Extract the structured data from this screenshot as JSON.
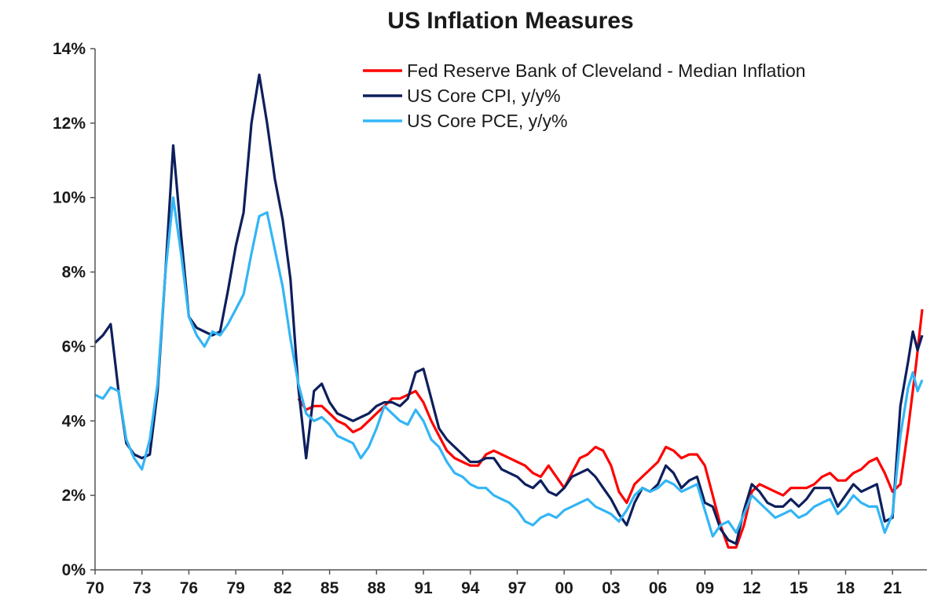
{
  "chart_data": {
    "type": "line",
    "title": "US Inflation Measures",
    "xlabel": "",
    "ylabel": "",
    "xlim": [
      1970.0,
      2023.2
    ],
    "ylim": [
      0,
      14
    ],
    "grid": false,
    "legend_position": "top-right",
    "x_tick_values": [
      1970,
      1973,
      1976,
      1979,
      1982,
      1985,
      1988,
      1991,
      1994,
      1997,
      2000,
      2003,
      2006,
      2009,
      2012,
      2015,
      2018,
      2021
    ],
    "x_tick_labels": [
      "70",
      "73",
      "76",
      "79",
      "82",
      "85",
      "88",
      "91",
      "94",
      "97",
      "00",
      "03",
      "06",
      "09",
      "12",
      "15",
      "18",
      "21"
    ],
    "y_tick_values": [
      0,
      2,
      4,
      6,
      8,
      10,
      12,
      14
    ],
    "y_tick_labels": [
      "0%",
      "2%",
      "4%",
      "6%",
      "8%",
      "10%",
      "12%",
      "14%"
    ],
    "series": [
      {
        "name": "Fed Reserve Bank of Cleveland - Median Inflation",
        "color": "#ff0000",
        "points": [
          [
            1983.0,
            4.6
          ],
          [
            1983.5,
            4.3
          ],
          [
            1984.0,
            4.4
          ],
          [
            1984.5,
            4.4
          ],
          [
            1985.0,
            4.2
          ],
          [
            1985.5,
            4.0
          ],
          [
            1986.0,
            3.9
          ],
          [
            1986.5,
            3.7
          ],
          [
            1987.0,
            3.8
          ],
          [
            1987.5,
            4.0
          ],
          [
            1988.0,
            4.2
          ],
          [
            1988.5,
            4.4
          ],
          [
            1989.0,
            4.6
          ],
          [
            1989.5,
            4.6
          ],
          [
            1990.0,
            4.7
          ],
          [
            1990.5,
            4.8
          ],
          [
            1991.0,
            4.5
          ],
          [
            1991.5,
            4.0
          ],
          [
            1992.0,
            3.6
          ],
          [
            1992.5,
            3.2
          ],
          [
            1993.0,
            3.0
          ],
          [
            1993.5,
            2.9
          ],
          [
            1994.0,
            2.8
          ],
          [
            1994.5,
            2.8
          ],
          [
            1995.0,
            3.1
          ],
          [
            1995.5,
            3.2
          ],
          [
            1996.0,
            3.1
          ],
          [
            1996.5,
            3.0
          ],
          [
            1997.0,
            2.9
          ],
          [
            1997.5,
            2.8
          ],
          [
            1998.0,
            2.6
          ],
          [
            1998.5,
            2.5
          ],
          [
            1999.0,
            2.8
          ],
          [
            1999.5,
            2.5
          ],
          [
            2000.0,
            2.2
          ],
          [
            2000.5,
            2.6
          ],
          [
            2001.0,
            3.0
          ],
          [
            2001.5,
            3.1
          ],
          [
            2002.0,
            3.3
          ],
          [
            2002.5,
            3.2
          ],
          [
            2003.0,
            2.8
          ],
          [
            2003.5,
            2.1
          ],
          [
            2004.0,
            1.8
          ],
          [
            2004.5,
            2.3
          ],
          [
            2005.0,
            2.5
          ],
          [
            2005.5,
            2.7
          ],
          [
            2006.0,
            2.9
          ],
          [
            2006.5,
            3.3
          ],
          [
            2007.0,
            3.2
          ],
          [
            2007.5,
            3.0
          ],
          [
            2008.0,
            3.1
          ],
          [
            2008.5,
            3.1
          ],
          [
            2009.0,
            2.8
          ],
          [
            2009.5,
            2.0
          ],
          [
            2010.0,
            1.2
          ],
          [
            2010.5,
            0.6
          ],
          [
            2011.0,
            0.6
          ],
          [
            2011.5,
            1.2
          ],
          [
            2012.0,
            2.1
          ],
          [
            2012.5,
            2.3
          ],
          [
            2013.0,
            2.2
          ],
          [
            2013.5,
            2.1
          ],
          [
            2014.0,
            2.0
          ],
          [
            2014.5,
            2.2
          ],
          [
            2015.0,
            2.2
          ],
          [
            2015.5,
            2.2
          ],
          [
            2016.0,
            2.3
          ],
          [
            2016.5,
            2.5
          ],
          [
            2017.0,
            2.6
          ],
          [
            2017.5,
            2.4
          ],
          [
            2018.0,
            2.4
          ],
          [
            2018.5,
            2.6
          ],
          [
            2019.0,
            2.7
          ],
          [
            2019.5,
            2.9
          ],
          [
            2020.0,
            3.0
          ],
          [
            2020.5,
            2.6
          ],
          [
            2021.0,
            2.1
          ],
          [
            2021.5,
            2.3
          ],
          [
            2022.0,
            3.8
          ],
          [
            2022.5,
            5.5
          ],
          [
            2022.9,
            7.0
          ]
        ]
      },
      {
        "name": "US Core CPI, y/y%",
        "color": "#0d1f5c",
        "points": [
          [
            1970.0,
            6.1
          ],
          [
            1970.5,
            6.3
          ],
          [
            1971.0,
            6.6
          ],
          [
            1971.5,
            4.8
          ],
          [
            1972.0,
            3.4
          ],
          [
            1972.5,
            3.1
          ],
          [
            1973.0,
            3.0
          ],
          [
            1973.5,
            3.1
          ],
          [
            1974.0,
            4.8
          ],
          [
            1974.5,
            8.0
          ],
          [
            1975.0,
            11.4
          ],
          [
            1975.5,
            9.0
          ],
          [
            1976.0,
            6.8
          ],
          [
            1976.5,
            6.5
          ],
          [
            1977.0,
            6.4
          ],
          [
            1977.5,
            6.3
          ],
          [
            1978.0,
            6.4
          ],
          [
            1978.5,
            7.5
          ],
          [
            1979.0,
            8.7
          ],
          [
            1979.5,
            9.6
          ],
          [
            1980.0,
            12.0
          ],
          [
            1980.5,
            13.3
          ],
          [
            1981.0,
            12.0
          ],
          [
            1981.5,
            10.5
          ],
          [
            1982.0,
            9.4
          ],
          [
            1982.5,
            7.8
          ],
          [
            1983.0,
            4.9
          ],
          [
            1983.5,
            3.0
          ],
          [
            1984.0,
            4.8
          ],
          [
            1984.5,
            5.0
          ],
          [
            1985.0,
            4.5
          ],
          [
            1985.5,
            4.2
          ],
          [
            1986.0,
            4.1
          ],
          [
            1986.5,
            4.0
          ],
          [
            1987.0,
            4.1
          ],
          [
            1987.5,
            4.2
          ],
          [
            1988.0,
            4.4
          ],
          [
            1988.5,
            4.5
          ],
          [
            1989.0,
            4.5
          ],
          [
            1989.5,
            4.4
          ],
          [
            1990.0,
            4.6
          ],
          [
            1990.5,
            5.3
          ],
          [
            1991.0,
            5.4
          ],
          [
            1991.5,
            4.6
          ],
          [
            1992.0,
            3.8
          ],
          [
            1992.5,
            3.5
          ],
          [
            1993.0,
            3.3
          ],
          [
            1993.5,
            3.1
          ],
          [
            1994.0,
            2.9
          ],
          [
            1994.5,
            2.9
          ],
          [
            1995.0,
            3.0
          ],
          [
            1995.5,
            3.0
          ],
          [
            1996.0,
            2.7
          ],
          [
            1996.5,
            2.6
          ],
          [
            1997.0,
            2.5
          ],
          [
            1997.5,
            2.3
          ],
          [
            1998.0,
            2.2
          ],
          [
            1998.5,
            2.4
          ],
          [
            1999.0,
            2.1
          ],
          [
            1999.5,
            2.0
          ],
          [
            2000.0,
            2.2
          ],
          [
            2000.5,
            2.5
          ],
          [
            2001.0,
            2.6
          ],
          [
            2001.5,
            2.7
          ],
          [
            2002.0,
            2.5
          ],
          [
            2002.5,
            2.2
          ],
          [
            2003.0,
            1.9
          ],
          [
            2003.5,
            1.5
          ],
          [
            2004.0,
            1.2
          ],
          [
            2004.5,
            1.8
          ],
          [
            2005.0,
            2.2
          ],
          [
            2005.5,
            2.1
          ],
          [
            2006.0,
            2.3
          ],
          [
            2006.5,
            2.8
          ],
          [
            2007.0,
            2.6
          ],
          [
            2007.5,
            2.2
          ],
          [
            2008.0,
            2.4
          ],
          [
            2008.5,
            2.5
          ],
          [
            2009.0,
            1.8
          ],
          [
            2009.5,
            1.7
          ],
          [
            2010.0,
            1.1
          ],
          [
            2010.5,
            0.8
          ],
          [
            2011.0,
            0.7
          ],
          [
            2011.5,
            1.6
          ],
          [
            2012.0,
            2.3
          ],
          [
            2012.5,
            2.1
          ],
          [
            2013.0,
            1.8
          ],
          [
            2013.5,
            1.7
          ],
          [
            2014.0,
            1.7
          ],
          [
            2014.5,
            1.9
          ],
          [
            2015.0,
            1.7
          ],
          [
            2015.5,
            1.9
          ],
          [
            2016.0,
            2.2
          ],
          [
            2016.5,
            2.2
          ],
          [
            2017.0,
            2.2
          ],
          [
            2017.5,
            1.7
          ],
          [
            2018.0,
            2.0
          ],
          [
            2018.5,
            2.3
          ],
          [
            2019.0,
            2.1
          ],
          [
            2019.5,
            2.2
          ],
          [
            2020.0,
            2.3
          ],
          [
            2020.5,
            1.3
          ],
          [
            2021.0,
            1.4
          ],
          [
            2021.5,
            4.4
          ],
          [
            2022.0,
            5.6
          ],
          [
            2022.3,
            6.4
          ],
          [
            2022.6,
            5.9
          ],
          [
            2022.9,
            6.3
          ]
        ]
      },
      {
        "name": "US Core PCE, y/y%",
        "color": "#33b5f5",
        "points": [
          [
            1970.0,
            4.7
          ],
          [
            1970.5,
            4.6
          ],
          [
            1971.0,
            4.9
          ],
          [
            1971.5,
            4.8
          ],
          [
            1972.0,
            3.5
          ],
          [
            1972.5,
            3.0
          ],
          [
            1973.0,
            2.7
          ],
          [
            1973.5,
            3.5
          ],
          [
            1974.0,
            5.0
          ],
          [
            1974.5,
            8.0
          ],
          [
            1975.0,
            10.0
          ],
          [
            1975.5,
            8.5
          ],
          [
            1976.0,
            6.8
          ],
          [
            1976.5,
            6.3
          ],
          [
            1977.0,
            6.0
          ],
          [
            1977.5,
            6.4
          ],
          [
            1978.0,
            6.3
          ],
          [
            1978.5,
            6.6
          ],
          [
            1979.0,
            7.0
          ],
          [
            1979.5,
            7.4
          ],
          [
            1980.0,
            8.5
          ],
          [
            1980.5,
            9.5
          ],
          [
            1981.0,
            9.6
          ],
          [
            1981.5,
            8.6
          ],
          [
            1982.0,
            7.6
          ],
          [
            1982.5,
            6.2
          ],
          [
            1983.0,
            5.0
          ],
          [
            1983.5,
            4.2
          ],
          [
            1984.0,
            4.0
          ],
          [
            1984.5,
            4.1
          ],
          [
            1985.0,
            3.9
          ],
          [
            1985.5,
            3.6
          ],
          [
            1986.0,
            3.5
          ],
          [
            1986.5,
            3.4
          ],
          [
            1987.0,
            3.0
          ],
          [
            1987.5,
            3.3
          ],
          [
            1988.0,
            3.8
          ],
          [
            1988.5,
            4.4
          ],
          [
            1989.0,
            4.2
          ],
          [
            1989.5,
            4.0
          ],
          [
            1990.0,
            3.9
          ],
          [
            1990.5,
            4.3
          ],
          [
            1991.0,
            4.0
          ],
          [
            1991.5,
            3.5
          ],
          [
            1992.0,
            3.3
          ],
          [
            1992.5,
            2.9
          ],
          [
            1993.0,
            2.6
          ],
          [
            1993.5,
            2.5
          ],
          [
            1994.0,
            2.3
          ],
          [
            1994.5,
            2.2
          ],
          [
            1995.0,
            2.2
          ],
          [
            1995.5,
            2.0
          ],
          [
            1996.0,
            1.9
          ],
          [
            1996.5,
            1.8
          ],
          [
            1997.0,
            1.6
          ],
          [
            1997.5,
            1.3
          ],
          [
            1998.0,
            1.2
          ],
          [
            1998.5,
            1.4
          ],
          [
            1999.0,
            1.5
          ],
          [
            1999.5,
            1.4
          ],
          [
            2000.0,
            1.6
          ],
          [
            2000.5,
            1.7
          ],
          [
            2001.0,
            1.8
          ],
          [
            2001.5,
            1.9
          ],
          [
            2002.0,
            1.7
          ],
          [
            2002.5,
            1.6
          ],
          [
            2003.0,
            1.5
          ],
          [
            2003.5,
            1.3
          ],
          [
            2004.0,
            1.6
          ],
          [
            2004.5,
            2.0
          ],
          [
            2005.0,
            2.2
          ],
          [
            2005.5,
            2.1
          ],
          [
            2006.0,
            2.2
          ],
          [
            2006.5,
            2.4
          ],
          [
            2007.0,
            2.3
          ],
          [
            2007.5,
            2.1
          ],
          [
            2008.0,
            2.2
          ],
          [
            2008.5,
            2.3
          ],
          [
            2009.0,
            1.6
          ],
          [
            2009.5,
            0.9
          ],
          [
            2010.0,
            1.2
          ],
          [
            2010.5,
            1.3
          ],
          [
            2011.0,
            1.0
          ],
          [
            2011.5,
            1.5
          ],
          [
            2012.0,
            2.0
          ],
          [
            2012.5,
            1.8
          ],
          [
            2013.0,
            1.6
          ],
          [
            2013.5,
            1.4
          ],
          [
            2014.0,
            1.5
          ],
          [
            2014.5,
            1.6
          ],
          [
            2015.0,
            1.4
          ],
          [
            2015.5,
            1.5
          ],
          [
            2016.0,
            1.7
          ],
          [
            2016.5,
            1.8
          ],
          [
            2017.0,
            1.9
          ],
          [
            2017.5,
            1.5
          ],
          [
            2018.0,
            1.7
          ],
          [
            2018.5,
            2.0
          ],
          [
            2019.0,
            1.8
          ],
          [
            2019.5,
            1.7
          ],
          [
            2020.0,
            1.7
          ],
          [
            2020.5,
            1.0
          ],
          [
            2021.0,
            1.5
          ],
          [
            2021.5,
            3.6
          ],
          [
            2022.0,
            4.9
          ],
          [
            2022.3,
            5.3
          ],
          [
            2022.6,
            4.8
          ],
          [
            2022.9,
            5.1
          ]
        ]
      }
    ]
  }
}
